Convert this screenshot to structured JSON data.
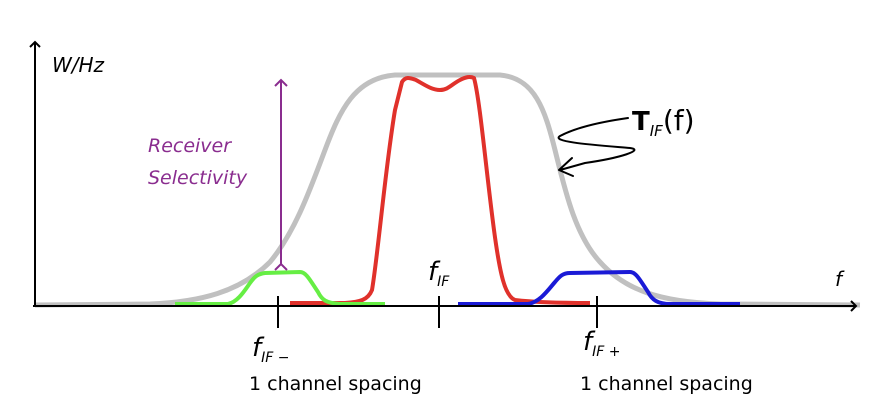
{
  "labels": {
    "y_axis": "W/Hz",
    "x_axis": "f",
    "selectivity_line1": "Receiver",
    "selectivity_line2": "Selectivity",
    "filter_base": "T",
    "filter_sub": "IF",
    "filter_arg": "(f)",
    "f_base": "f",
    "f_sub_center": "IF",
    "f_sub_lower": "IF −",
    "f_sub_upper": "IF +",
    "spacing_lower": "1 channel spacing",
    "spacing_upper": "1 channel spacing"
  },
  "colors": {
    "axis": "#000000",
    "filter_response": "#c0c0c0",
    "desired_channel": "#e0312b",
    "lower_adjacent": "#66ee44",
    "upper_adjacent": "#1a1ad6",
    "selectivity": "#8a2d8f"
  }
}
